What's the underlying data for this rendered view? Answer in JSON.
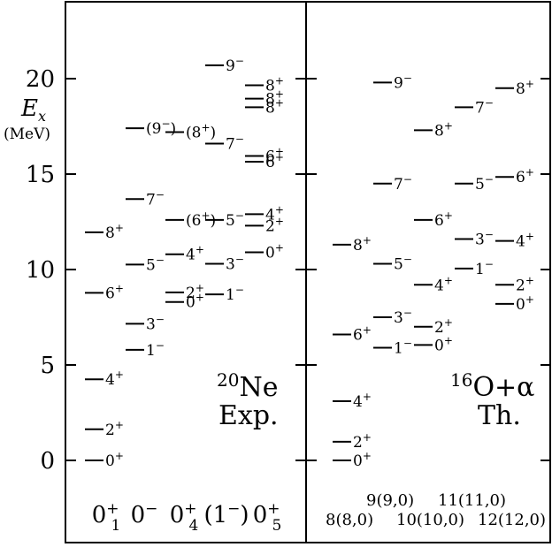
{
  "axis": {
    "title": "E",
    "title_sub": "x",
    "unit": "(MeV)",
    "ticks": [
      {
        "label": "0",
        "value": 0
      },
      {
        "label": "5",
        "value": 5
      },
      {
        "label": "10",
        "value": 10
      },
      {
        "label": "15",
        "value": 15
      },
      {
        "label": "20",
        "value": 20
      }
    ]
  },
  "left_panel": {
    "label_iso": "20",
    "label_elem": "Ne",
    "label_line2": "Exp.",
    "band_labels": [
      {
        "main": "0",
        "sup": "+",
        "sub": "1",
        "x": 120
      },
      {
        "main": "0",
        "sup": "−",
        "sub": "",
        "x": 163
      },
      {
        "main": "0",
        "sup": "+",
        "sub": "4",
        "x": 208
      },
      {
        "main": "(1",
        "sup": "−",
        "sub": "",
        "tail": ")",
        "x": 256
      },
      {
        "main": "0",
        "sup": "+",
        "sub": "5",
        "x": 302
      }
    ],
    "levels": [
      {
        "x1": 96,
        "x2": 117,
        "e": 0.0,
        "label": "0",
        "sup": "+"
      },
      {
        "x1": 96,
        "x2": 117,
        "e": 1.63,
        "label": "2",
        "sup": "+"
      },
      {
        "x1": 96,
        "x2": 117,
        "e": 4.25,
        "label": "4",
        "sup": "+"
      },
      {
        "x1": 96,
        "x2": 117,
        "e": 8.78,
        "label": "6",
        "sup": "+"
      },
      {
        "x1": 96,
        "x2": 117,
        "e": 11.95,
        "label": "8",
        "sup": "+"
      },
      {
        "x1": 142,
        "x2": 163,
        "e": 5.79,
        "label": "1",
        "sup": "−"
      },
      {
        "x1": 142,
        "x2": 163,
        "e": 7.16,
        "label": "3",
        "sup": "−"
      },
      {
        "x1": 142,
        "x2": 163,
        "e": 10.26,
        "label": "5",
        "sup": "−"
      },
      {
        "x1": 142,
        "x2": 163,
        "e": 13.69,
        "label": "7",
        "sup": "−"
      },
      {
        "x1": 142,
        "x2": 163,
        "e": 17.4,
        "label": "(9",
        "sup": "−",
        "tail": ")"
      },
      {
        "x1": 187,
        "x2": 208,
        "e": 8.3,
        "label": "0",
        "sup": "+"
      },
      {
        "x1": 187,
        "x2": 208,
        "e": 8.8,
        "label": "2",
        "sup": "+"
      },
      {
        "x1": 187,
        "x2": 208,
        "e": 10.8,
        "label": "4",
        "sup": "+"
      },
      {
        "x1": 187,
        "x2": 208,
        "e": 12.6,
        "label": "(6",
        "sup": "+",
        "tail": ")"
      },
      {
        "x1": 187,
        "x2": 208,
        "e": 17.2,
        "label": "(8",
        "sup": "+",
        "tail": ")"
      },
      {
        "x1": 232,
        "x2": 253,
        "e": 8.7,
        "label": "1",
        "sup": "−"
      },
      {
        "x1": 232,
        "x2": 253,
        "e": 10.3,
        "label": "3",
        "sup": "−"
      },
      {
        "x1": 232,
        "x2": 253,
        "e": 12.6,
        "label": "5",
        "sup": "−"
      },
      {
        "x1": 232,
        "x2": 253,
        "e": 16.6,
        "label": "7",
        "sup": "−"
      },
      {
        "x1": 232,
        "x2": 253,
        "e": 20.7,
        "label": "9",
        "sup": "−"
      },
      {
        "x1": 277,
        "x2": 298,
        "e": 10.9,
        "label": "0",
        "sup": "+"
      },
      {
        "x1": 277,
        "x2": 298,
        "e": 12.3,
        "label": "2",
        "sup": "+"
      },
      {
        "x1": 277,
        "x2": 298,
        "e": 12.9,
        "label": "4",
        "sup": "+"
      },
      {
        "x1": 277,
        "x2": 298,
        "e": 15.65,
        "label": "6",
        "sup": "+"
      },
      {
        "x1": 277,
        "x2": 298,
        "e": 15.95,
        "label": "6",
        "sup": "+"
      },
      {
        "x1": 277,
        "x2": 298,
        "e": 18.5,
        "label": "8",
        "sup": "+"
      },
      {
        "x1": 277,
        "x2": 298,
        "e": 18.95,
        "label": "8",
        "sup": "+"
      },
      {
        "x1": 277,
        "x2": 298,
        "e": 19.65,
        "label": "8",
        "sup": "+"
      }
    ]
  },
  "right_panel": {
    "label_iso": "16",
    "label_elem": "O+α",
    "label_line2": "Th.",
    "band_labels_top": [
      "9(9,0)",
      "11(11,0)"
    ],
    "band_labels_bottom": [
      "8(8,0)",
      "10(10,0)",
      "12(12,0)"
    ],
    "levels": [
      {
        "x1": 376,
        "x2": 397,
        "e": 0.0,
        "label": "0",
        "sup": "+"
      },
      {
        "x1": 376,
        "x2": 397,
        "e": 0.98,
        "label": "2",
        "sup": "+"
      },
      {
        "x1": 376,
        "x2": 397,
        "e": 3.1,
        "label": "4",
        "sup": "+"
      },
      {
        "x1": 376,
        "x2": 397,
        "e": 6.6,
        "label": "6",
        "sup": "+"
      },
      {
        "x1": 376,
        "x2": 397,
        "e": 11.3,
        "label": "8",
        "sup": "+"
      },
      {
        "x1": 422,
        "x2": 443,
        "e": 5.9,
        "label": "1",
        "sup": "−"
      },
      {
        "x1": 422,
        "x2": 443,
        "e": 7.5,
        "label": "3",
        "sup": "−"
      },
      {
        "x1": 422,
        "x2": 443,
        "e": 10.3,
        "label": "5",
        "sup": "−"
      },
      {
        "x1": 422,
        "x2": 443,
        "e": 14.5,
        "label": "7",
        "sup": "−"
      },
      {
        "x1": 422,
        "x2": 443,
        "e": 19.8,
        "label": "9",
        "sup": "−"
      },
      {
        "x1": 468,
        "x2": 489,
        "e": 6.05,
        "label": "0",
        "sup": "+"
      },
      {
        "x1": 468,
        "x2": 489,
        "e": 7.0,
        "label": "2",
        "sup": "+"
      },
      {
        "x1": 468,
        "x2": 489,
        "e": 9.2,
        "label": "4",
        "sup": "+"
      },
      {
        "x1": 468,
        "x2": 489,
        "e": 12.6,
        "label": "6",
        "sup": "+"
      },
      {
        "x1": 468,
        "x2": 489,
        "e": 17.3,
        "label": "8",
        "sup": "+"
      },
      {
        "x1": 514,
        "x2": 535,
        "e": 10.05,
        "label": "1",
        "sup": "−"
      },
      {
        "x1": 514,
        "x2": 535,
        "e": 11.6,
        "label": "3",
        "sup": "−"
      },
      {
        "x1": 514,
        "x2": 535,
        "e": 14.5,
        "label": "5",
        "sup": "−"
      },
      {
        "x1": 514,
        "x2": 535,
        "e": 18.5,
        "label": "7",
        "sup": "−"
      },
      {
        "x1": 560,
        "x2": 581,
        "e": 8.2,
        "label": "0",
        "sup": "+"
      },
      {
        "x1": 560,
        "x2": 581,
        "e": 9.2,
        "label": "2",
        "sup": "+"
      },
      {
        "x1": 560,
        "x2": 581,
        "e": 11.5,
        "label": "4",
        "sup": "+"
      },
      {
        "x1": 560,
        "x2": 581,
        "e": 14.85,
        "label": "6",
        "sup": "+"
      },
      {
        "x1": 560,
        "x2": 581,
        "e": 19.5,
        "label": "8",
        "sup": "+"
      }
    ]
  }
}
